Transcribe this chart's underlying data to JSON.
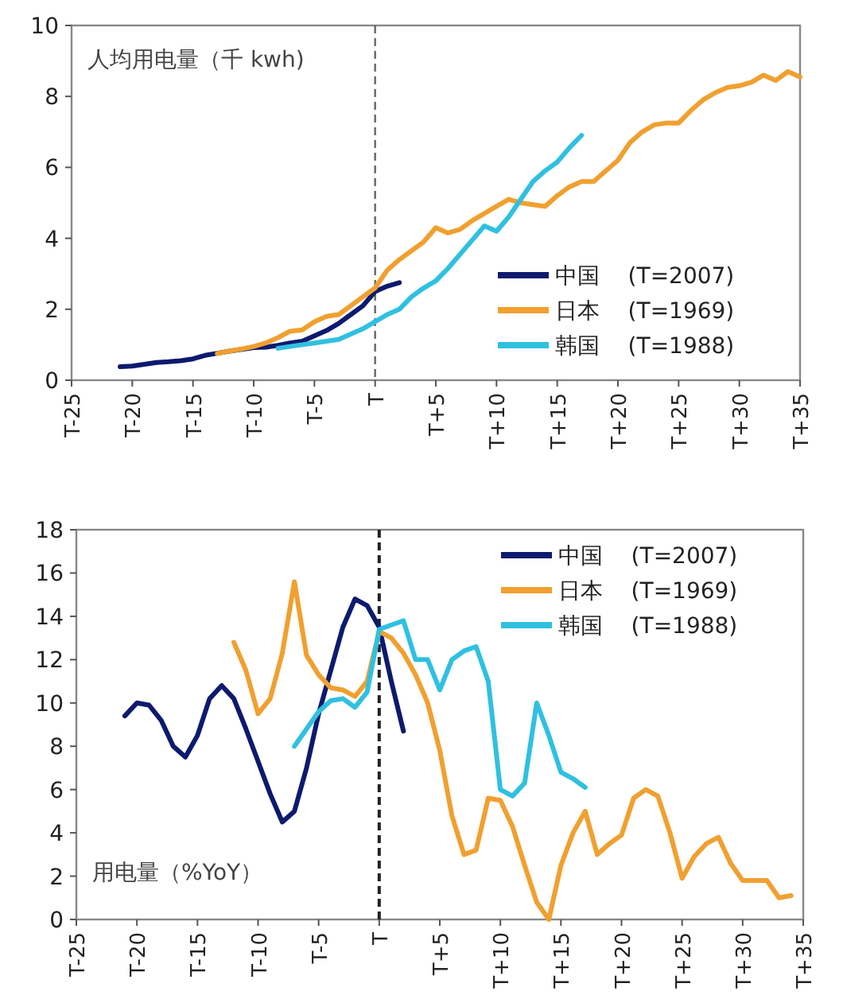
{
  "chart_data": [
    {
      "type": "line",
      "annotations": [
        "人均用电量（千 kwh)"
      ],
      "categories": [
        "T-25",
        null,
        null,
        null,
        null,
        "T-20",
        null,
        null,
        null,
        null,
        "T-15",
        null,
        null,
        null,
        null,
        "T-10",
        null,
        null,
        null,
        null,
        "T-5",
        null,
        null,
        null,
        null,
        "T",
        null,
        null,
        null,
        null,
        "T+5",
        null,
        null,
        null,
        null,
        "T+10",
        null,
        null,
        null,
        null,
        "T+15",
        null,
        null,
        null,
        null,
        "T+20",
        null,
        null,
        null,
        null,
        "T+25",
        null,
        null,
        null,
        null,
        "T+30",
        null,
        null,
        null,
        null,
        "T+35"
      ],
      "ylim": [
        0,
        10
      ],
      "yticks": [
        0,
        2,
        4,
        6,
        8,
        10
      ],
      "grid": false,
      "legend": "bottom right",
      "marker": "none",
      "line_style": "solid",
      "ref_lines": [
        {
          "axis": "x",
          "value": "T",
          "color": "#666666",
          "line_style": "dashed"
        }
      ],
      "series": [
        {
          "name": "中国    (T=2007)",
          "color": "#0d1a6e",
          "values": [
            null,
            null,
            null,
            null,
            0.38,
            0.4,
            0.45,
            0.5,
            0.52,
            0.55,
            0.6,
            0.7,
            0.76,
            0.82,
            0.87,
            0.92,
            0.93,
            0.98,
            1.05,
            1.1,
            1.25,
            1.4,
            1.6,
            1.85,
            2.1,
            2.5,
            2.65,
            2.75,
            null,
            null,
            null,
            null,
            null,
            null,
            null,
            null,
            null,
            null,
            null,
            null,
            null,
            null,
            null,
            null,
            null,
            null,
            null,
            null,
            null,
            null,
            null,
            null,
            null,
            null,
            null,
            null,
            null,
            null,
            null,
            null,
            null
          ]
        },
        {
          "name": "日本    (T=1969)",
          "color": "#f0a030",
          "values": [
            null,
            null,
            null,
            null,
            null,
            null,
            null,
            null,
            null,
            null,
            null,
            null,
            0.75,
            0.82,
            0.88,
            0.95,
            1.05,
            1.2,
            1.38,
            1.42,
            1.65,
            1.8,
            1.85,
            2.1,
            2.35,
            2.6,
            3.1,
            3.4,
            3.65,
            3.9,
            4.3,
            4.15,
            4.25,
            4.5,
            4.7,
            4.9,
            5.1,
            5.0,
            4.95,
            4.9,
            5.2,
            5.45,
            5.6,
            5.6,
            5.9,
            6.2,
            6.7,
            7.0,
            7.2,
            7.25,
            7.25,
            7.6,
            7.9,
            8.1,
            8.25,
            8.3,
            8.4,
            8.6,
            8.45,
            8.7,
            8.55
          ]
        },
        {
          "name": "韩国    (T=1988)",
          "color": "#30c0e0",
          "values": [
            null,
            null,
            null,
            null,
            null,
            null,
            null,
            null,
            null,
            null,
            null,
            null,
            null,
            null,
            null,
            null,
            null,
            0.9,
            0.95,
            1.0,
            1.05,
            1.1,
            1.15,
            1.3,
            1.45,
            1.65,
            1.85,
            2.0,
            2.35,
            2.6,
            2.8,
            3.15,
            3.55,
            3.95,
            4.35,
            4.2,
            4.6,
            5.1,
            5.6,
            5.9,
            6.15,
            6.55,
            6.9,
            null,
            null,
            null,
            null,
            null,
            null,
            null,
            null,
            null,
            null,
            null,
            null,
            null,
            null,
            null,
            null,
            null,
            null
          ]
        }
      ]
    },
    {
      "type": "line",
      "annotations": [
        "用电量（%YoY）"
      ],
      "categories": [
        "T-25",
        null,
        null,
        null,
        null,
        "T-20",
        null,
        null,
        null,
        null,
        "T-15",
        null,
        null,
        null,
        null,
        "T-10",
        null,
        null,
        null,
        null,
        "T-5",
        null,
        null,
        null,
        null,
        "T",
        null,
        null,
        null,
        null,
        "T+5",
        null,
        null,
        null,
        null,
        "T+10",
        null,
        null,
        null,
        null,
        "T+15",
        null,
        null,
        null,
        null,
        "T+20",
        null,
        null,
        null,
        null,
        "T+25",
        null,
        null,
        null,
        null,
        "T+30",
        null,
        null,
        null,
        null,
        "T+35"
      ],
      "ylim": [
        0,
        18
      ],
      "yticks": [
        0,
        2,
        4,
        6,
        8,
        10,
        12,
        14,
        16,
        18
      ],
      "grid": false,
      "legend": "top right",
      "marker": "none",
      "line_style": "solid",
      "ref_lines": [
        {
          "axis": "x",
          "value": "T",
          "color": "#222222",
          "line_style": "dashed"
        }
      ],
      "series": [
        {
          "name": "中国    (T=2007)",
          "color": "#0d1a6e",
          "values": [
            null,
            null,
            null,
            null,
            9.4,
            10.0,
            9.9,
            9.2,
            8.0,
            7.5,
            8.5,
            10.2,
            10.8,
            10.2,
            8.8,
            7.3,
            5.8,
            4.5,
            5.0,
            7.0,
            9.5,
            11.5,
            13.5,
            14.8,
            14.5,
            13.5,
            11.0,
            8.7,
            null,
            null,
            null,
            null,
            null,
            null,
            null,
            null,
            null,
            null,
            null,
            null,
            null,
            null,
            null,
            null,
            null,
            null,
            null,
            null,
            null,
            null,
            null,
            null,
            null,
            null,
            null,
            null,
            null,
            null,
            null,
            null,
            null
          ]
        },
        {
          "name": "日本    (T=1969)",
          "color": "#f0a030",
          "values": [
            null,
            null,
            null,
            null,
            null,
            null,
            null,
            null,
            null,
            null,
            null,
            null,
            null,
            12.8,
            11.5,
            9.5,
            10.2,
            12.3,
            15.6,
            12.2,
            11.3,
            10.7,
            10.6,
            10.3,
            11.0,
            13.3,
            13.0,
            12.3,
            11.3,
            10.0,
            7.8,
            4.8,
            3.0,
            3.2,
            5.6,
            5.5,
            4.3,
            2.5,
            0.8,
            0,
            2.5,
            4.0,
            5.0,
            3.0,
            3.5,
            3.9,
            5.6,
            6.0,
            5.7,
            4.0,
            1.9,
            2.9,
            3.5,
            3.8,
            2.6,
            1.8,
            1.8,
            1.8,
            1.0,
            1.1,
            null
          ]
        },
        {
          "name": "韩国    (T=1988)",
          "color": "#30c0e0",
          "values": [
            null,
            null,
            null,
            null,
            null,
            null,
            null,
            null,
            null,
            null,
            null,
            null,
            null,
            null,
            null,
            null,
            null,
            null,
            8.0,
            8.8,
            9.6,
            10.1,
            10.2,
            9.8,
            10.5,
            13.4,
            13.6,
            13.8,
            12.0,
            12.0,
            10.6,
            12.0,
            12.4,
            12.6,
            11.0,
            6.0,
            5.7,
            6.3,
            10.0,
            8.5,
            6.8,
            6.5,
            6.1,
            null,
            null,
            null,
            null,
            null,
            null,
            null,
            null,
            null,
            null,
            null,
            null,
            null,
            null,
            null,
            null,
            null,
            null
          ]
        }
      ]
    }
  ]
}
